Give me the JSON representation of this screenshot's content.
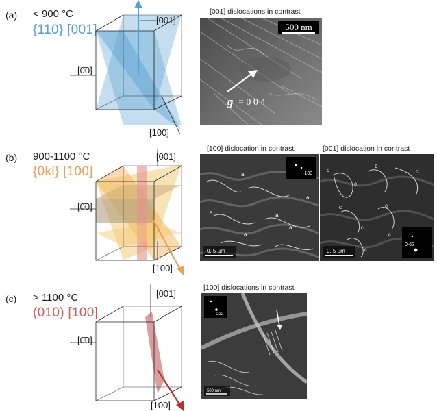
{
  "panels": [
    {
      "letter": "(a)",
      "temperature": "< 900 °C",
      "slip_system": "{110} [001]",
      "slip_color": "#5aa0d0",
      "axes": {
        "top": "[001]",
        "left": "[0̄0]",
        "bottom": "[100]"
      },
      "images": [
        {
          "caption": "[001] dislocations in contrast",
          "scale_bar": "500 nm",
          "g_label": "g",
          "g_value": "= 0 0 4"
        }
      ]
    },
    {
      "letter": "(b)",
      "temperature": "900-1100 °C",
      "slip_system": "{0kl} [100]",
      "slip_color": "#e8a05a",
      "axes": {
        "top": "[001]",
        "left": "[0̄0]",
        "bottom": "[100]"
      },
      "images": [
        {
          "caption": "[100] dislocation in contrast",
          "scale_bar": "0. 5 µm",
          "inset_label": "-130",
          "markers": [
            "a",
            "a",
            "a",
            "a",
            "a",
            "a"
          ]
        },
        {
          "caption": "[001] dislocation in contrast",
          "scale_bar": "0. 5 µm",
          "inset_label": "0-62",
          "markers": [
            "c",
            "c",
            "c",
            "c",
            "c",
            "c",
            "c",
            "c",
            "c"
          ]
        }
      ]
    },
    {
      "letter": "(c)",
      "temperature": "> 1100 °C",
      "slip_system": "(010) [100]",
      "slip_color": "#d05a5a",
      "axes": {
        "top": "[001]",
        "left": "[0̄0]",
        "bottom": "[100]"
      },
      "images": [
        {
          "caption": "[100] dislocations in contrast",
          "scale_bar": "500 nm",
          "inset_label": "2̄2̄2"
        }
      ]
    }
  ]
}
